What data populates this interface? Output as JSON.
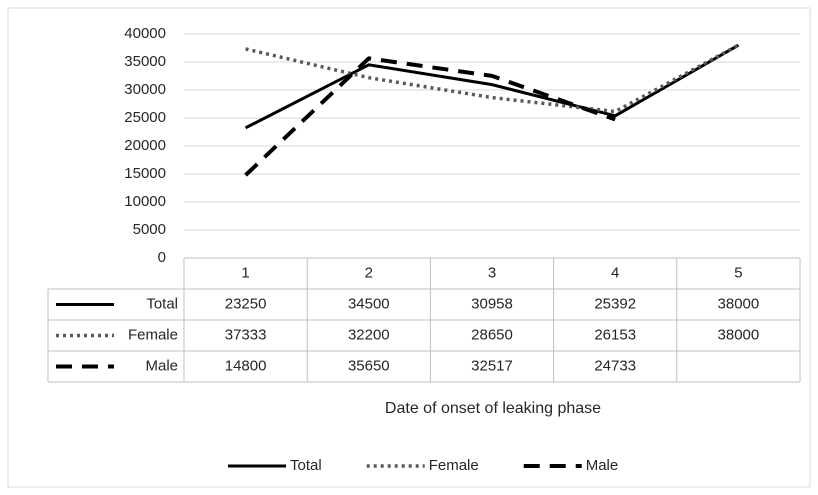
{
  "chart_data": {
    "type": "line",
    "x_label": "Date of onset of leaking phase",
    "categories": [
      "1",
      "2",
      "3",
      "4",
      "5"
    ],
    "series": [
      {
        "name": "Total",
        "color": "#000000",
        "line_style": "solid",
        "values": [
          23250,
          34500,
          30958,
          25392,
          38000
        ]
      },
      {
        "name": "Female",
        "color": "#595959",
        "line_style": "dotted",
        "values": [
          37333,
          32200,
          28650,
          26153,
          38000
        ]
      },
      {
        "name": "Male",
        "color": "#000000",
        "line_style": "dashed",
        "values": [
          14800,
          35650,
          32517,
          24733,
          null
        ]
      }
    ],
    "ylim": [
      0,
      40000
    ],
    "yticks": [
      0,
      5000,
      10000,
      15000,
      20000,
      25000,
      30000,
      35000,
      40000
    ],
    "grid": true,
    "data_table": true,
    "legend": "bottom"
  }
}
